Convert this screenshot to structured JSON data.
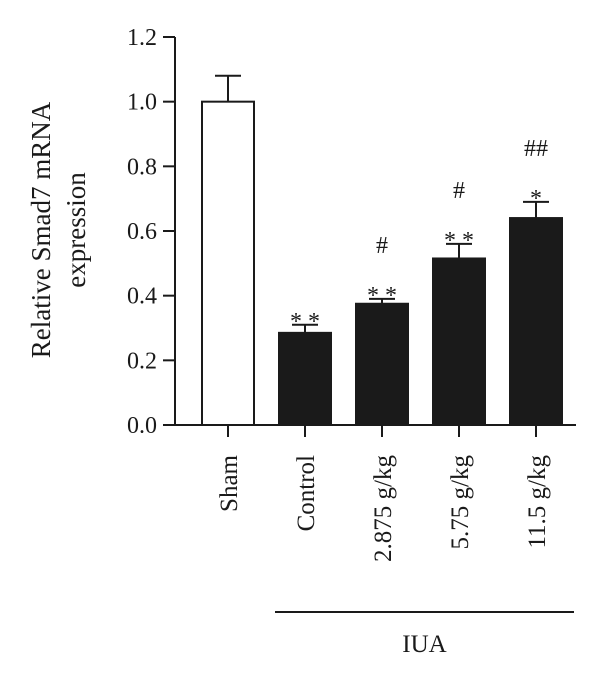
{
  "chart_data": {
    "type": "bar",
    "ylabel_lines": [
      "Relative Smad7 mRNA",
      "expression"
    ],
    "categories": [
      "Sham",
      "Control",
      "2.875 g/kg",
      "5.75 g/kg",
      "11.5 g/kg"
    ],
    "values": [
      1.0,
      0.285,
      0.375,
      0.515,
      0.64
    ],
    "errors": [
      0.08,
      0.025,
      0.015,
      0.045,
      0.05
    ],
    "significance": [
      [],
      [
        "* *"
      ],
      [
        "* *",
        "#"
      ],
      [
        "* *",
        "#"
      ],
      [
        "*",
        "##"
      ]
    ],
    "bar_fills": [
      "#ffffff",
      "#1a1a1a",
      "#1a1a1a",
      "#1a1a1a",
      "#1a1a1a"
    ],
    "ylim": [
      0,
      1.2
    ],
    "yticks": [
      "0.0",
      "0.2",
      "0.4",
      "0.6",
      "0.8",
      "1.0",
      "1.2"
    ],
    "ytick_values": [
      0,
      0.2,
      0.4,
      0.6,
      0.8,
      1.0,
      1.2
    ],
    "group": {
      "label": "IUA",
      "from_index": 1,
      "to_index": 4
    },
    "grid": false,
    "legend": "none"
  }
}
